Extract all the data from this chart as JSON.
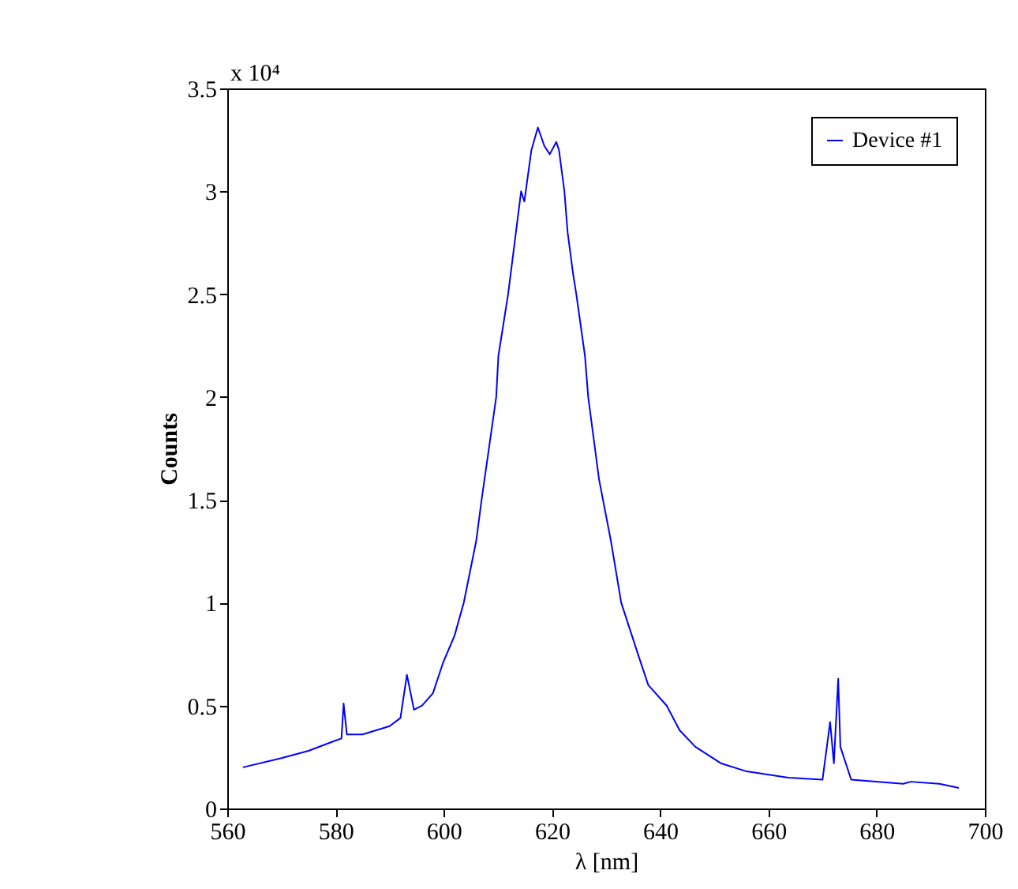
{
  "chart_data": {
    "type": "line",
    "xlabel": "λ [nm]",
    "ylabel": "Counts",
    "annotations": [
      "x 10⁴"
    ],
    "xlim": [
      560,
      700
    ],
    "xticks": [
      560,
      580,
      600,
      620,
      640,
      660,
      680,
      700
    ],
    "ylim": [
      0,
      3.5
    ],
    "yticks": [
      0,
      0.5,
      1,
      1.5,
      2,
      2.5,
      3,
      3.5
    ],
    "grid": false,
    "legend": "top right",
    "x": [
      562.9,
      570,
      575,
      580,
      581.1,
      581.5,
      582.1,
      585,
      590,
      592,
      593.2,
      594.5,
      596,
      598,
      599.9,
      602,
      603.7,
      606,
      607,
      609.7,
      610.1,
      611.9,
      614.3,
      614.9,
      616.2,
      617.4,
      618.6,
      619.6,
      620.8,
      621.3,
      622.3,
      622.9,
      623.9,
      624.5,
      626.1,
      626.7,
      628.7,
      630.9,
      632.8,
      635.9,
      637.8,
      641.2,
      643.6,
      646.5,
      651.2,
      656,
      663.7,
      670,
      671.4,
      672.1,
      672.9,
      673.3,
      675.3,
      684.9,
      686.3,
      691.6,
      695.2
    ],
    "series": [
      {
        "name": "Device #1",
        "color": "#0000ff",
        "values": [
          0.2,
          0.245,
          0.28,
          0.33,
          0.34,
          0.51,
          0.36,
          0.36,
          0.4,
          0.44,
          0.65,
          0.48,
          0.5,
          0.56,
          0.71,
          0.84,
          1.0,
          1.3,
          1.5,
          2.0,
          2.2,
          2.5,
          3.0,
          2.95,
          3.2,
          3.31,
          3.22,
          3.18,
          3.24,
          3.2,
          3.0,
          2.8,
          2.6,
          2.5,
          2.2,
          2.0,
          1.6,
          1.3,
          1.0,
          0.75,
          0.6,
          0.5,
          0.38,
          0.3,
          0.22,
          0.18,
          0.15,
          0.14,
          0.42,
          0.22,
          0.63,
          0.3,
          0.14,
          0.12,
          0.13,
          0.12,
          0.1
        ]
      }
    ]
  }
}
